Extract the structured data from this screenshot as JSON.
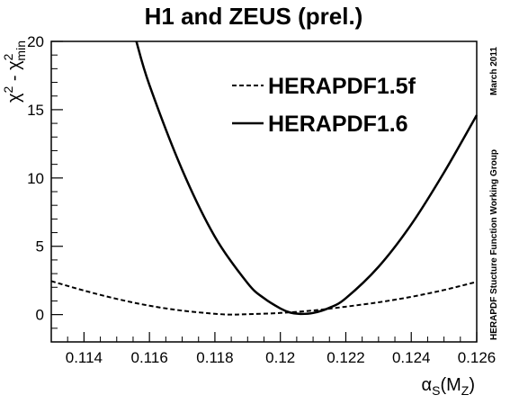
{
  "chart_data": {
    "type": "line",
    "title": "H1 and ZEUS (prel.)",
    "xlabel": {
      "base": "α",
      "sub": "S",
      "paren_open": "(M",
      "paren_sub": "Z",
      "paren_close": ")"
    },
    "ylabel": {
      "a": "χ",
      "a_sup": "2",
      "sep": " - ",
      "b": "χ",
      "b_sup": "2",
      "b_sub": "min"
    },
    "xlim": [
      0.113,
      0.126
    ],
    "ylim": [
      -2,
      20
    ],
    "x_ticks": [
      0.114,
      0.116,
      0.118,
      0.12,
      0.122,
      0.124,
      0.126
    ],
    "x_tick_labels": [
      "0.114",
      "0.116",
      "0.118",
      "0.12",
      "0.122",
      "0.124",
      "0.126"
    ],
    "y_ticks": [
      0,
      5,
      10,
      15,
      20
    ],
    "y_tick_labels": [
      "0",
      "5",
      "10",
      "15",
      "20"
    ],
    "grid": false,
    "legend_position": "top-right",
    "series": [
      {
        "name": "HERAPDF1.5f",
        "style": "dashed",
        "color": "#000000",
        "x": [
          0.113,
          0.114,
          0.115,
          0.116,
          0.117,
          0.118,
          0.1185,
          0.119,
          0.12,
          0.121,
          0.122,
          0.123,
          0.124,
          0.125,
          0.126
        ],
        "y": [
          2.45,
          1.76,
          1.15,
          0.65,
          0.29,
          0.06,
          0.0,
          0.03,
          0.12,
          0.3,
          0.58,
          0.9,
          1.3,
          1.8,
          2.4
        ]
      },
      {
        "name": "HERAPDF1.6",
        "style": "solid",
        "color": "#000000",
        "x": [
          0.1156,
          0.116,
          0.117,
          0.118,
          0.119,
          0.1195,
          0.12,
          0.1203,
          0.1206,
          0.121,
          0.1215,
          0.122,
          0.123,
          0.124,
          0.125,
          0.126
        ],
        "y": [
          20.0,
          16.8,
          10.6,
          5.7,
          2.3,
          1.2,
          0.45,
          0.15,
          0.05,
          0.12,
          0.5,
          1.2,
          3.5,
          6.6,
          10.4,
          14.6
        ]
      }
    ],
    "side_note": "HERAPDF Stucture Function Working Group",
    "date_note": "March 2011"
  }
}
